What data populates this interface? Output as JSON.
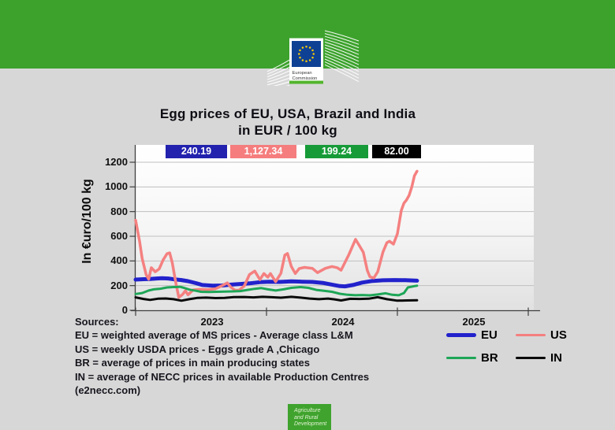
{
  "colors": {
    "header_green": "#3CA22C",
    "footer_green": "#3FA32E",
    "background_gray": "#D7D7D7",
    "logo_flag_blue": "#0E4194",
    "logo_bar_green": "#53B52C"
  },
  "logo": {
    "line1": "European",
    "line2": "Commission"
  },
  "title": {
    "line1": "Egg prices of EU, USA, Brazil and India",
    "line2": "in EUR / 100 kg"
  },
  "badges": [
    {
      "value": "240.19",
      "color": "#2222AE"
    },
    {
      "value": "1,127.34",
      "color": "#F57D7D"
    },
    {
      "value": "199.24",
      "color": "#169B38"
    },
    {
      "value": "82.00",
      "color": "#000000"
    }
  ],
  "sources": {
    "heading": "Sources:",
    "lines": [
      "EU =  weighted average of MS prices  -  Average class  L&M",
      "US =  weekly USDA prices  -  Eggs grade A ,Chicago",
      "BR =  average of prices in main producing states",
      "IN =  average of NECC prices in available  Production Centres",
      "(e2necc.com)"
    ]
  },
  "footer": {
    "lines": [
      "Agriculture",
      "and Rural",
      "Development"
    ]
  },
  "chart_data": {
    "type": "line",
    "title": "Egg prices of EU, USA, Brazil and India in EUR / 100 kg",
    "xlabel": "",
    "ylabel": "In €uro/100 kg",
    "ylim": [
      0,
      1200
    ],
    "y_ticks": [
      0,
      200,
      400,
      600,
      800,
      1000,
      1200
    ],
    "x_tick_labels": [
      "2023",
      "2024",
      "2025"
    ],
    "x_units": "decimal years, data from Jan 2023 to early 2025",
    "grid": true,
    "legend_position": "bottom-right",
    "series": [
      {
        "name": "EU",
        "color": "#2222CC",
        "width": 5,
        "last_label": "240.19",
        "last_value": 240.19,
        "x": [
          2023.0,
          2023.06,
          2023.11,
          2023.16,
          2023.2,
          2023.25,
          2023.3,
          2023.35,
          2023.4,
          2023.46,
          2023.51,
          2023.59,
          2023.66,
          2023.73,
          2023.8,
          2023.87,
          2023.95,
          2024.02,
          2024.1,
          2024.19,
          2024.27,
          2024.35,
          2024.43,
          2024.5,
          2024.56,
          2024.6,
          2024.66,
          2024.73,
          2024.81,
          2024.89,
          2024.98,
          2025.06,
          2025.15
        ],
        "values": [
          249,
          252,
          254,
          258,
          260,
          258,
          250,
          245,
          236,
          220,
          205,
          200,
          201,
          208,
          213,
          218,
          228,
          232,
          230,
          234,
          232,
          230,
          222,
          208,
          196,
          194,
          205,
          225,
          238,
          243,
          245,
          244,
          240.19
        ]
      },
      {
        "name": "US",
        "color": "#F58080",
        "width": 3.5,
        "last_label": "1,127.34",
        "last_value": 1127.34,
        "x": [
          2023.0,
          2023.03,
          2023.05,
          2023.08,
          2023.1,
          2023.12,
          2023.15,
          2023.18,
          2023.21,
          2023.24,
          2023.26,
          2023.28,
          2023.31,
          2023.33,
          2023.36,
          2023.38,
          2023.4,
          2023.44,
          2023.49,
          2023.55,
          2023.61,
          2023.67,
          2023.7,
          2023.73,
          2023.76,
          2023.79,
          2023.83,
          2023.87,
          2023.91,
          2023.95,
          2023.98,
          2024.01,
          2024.03,
          2024.07,
          2024.11,
          2024.14,
          2024.16,
          2024.19,
          2024.22,
          2024.25,
          2024.29,
          2024.35,
          2024.39,
          2024.45,
          2024.5,
          2024.54,
          2024.57,
          2024.63,
          2024.68,
          2024.71,
          2024.74,
          2024.77,
          2024.79,
          2024.82,
          2024.85,
          2024.89,
          2024.92,
          2024.94,
          2024.97,
          2025.0,
          2025.03,
          2025.05,
          2025.07,
          2025.09,
          2025.11,
          2025.13,
          2025.15
        ],
        "values": [
          730,
          560,
          420,
          290,
          252,
          345,
          312,
          335,
          408,
          458,
          465,
          385,
          205,
          105,
          130,
          158,
          126,
          165,
          170,
          168,
          174,
          205,
          222,
          185,
          163,
          163,
          197,
          290,
          318,
          248,
          298,
          268,
          298,
          232,
          300,
          447,
          460,
          355,
          298,
          338,
          348,
          340,
          305,
          340,
          355,
          345,
          325,
          453,
          575,
          523,
          470,
          325,
          272,
          262,
          313,
          472,
          548,
          560,
          536,
          620,
          810,
          868,
          894,
          932,
          1000,
          1090,
          1127.34
        ]
      },
      {
        "name": "BR",
        "color": "#1EA657",
        "width": 3,
        "last_label": "199.24",
        "last_value": 199.24,
        "x": [
          2023.0,
          2023.05,
          2023.1,
          2023.14,
          2023.19,
          2023.24,
          2023.29,
          2023.34,
          2023.37,
          2023.41,
          2023.46,
          2023.5,
          2023.56,
          2023.62,
          2023.68,
          2023.74,
          2023.8,
          2023.86,
          2023.91,
          2023.96,
          2024.01,
          2024.07,
          2024.13,
          2024.19,
          2024.26,
          2024.32,
          2024.38,
          2024.44,
          2024.5,
          2024.56,
          2024.62,
          2024.68,
          2024.73,
          2024.79,
          2024.85,
          2024.91,
          2024.96,
          2025.01,
          2025.05,
          2025.08,
          2025.13,
          2025.15
        ],
        "values": [
          132,
          140,
          160,
          170,
          175,
          185,
          188,
          190,
          182,
          168,
          158,
          150,
          148,
          150,
          152,
          153,
          156,
          166,
          174,
          180,
          170,
          160,
          170,
          182,
          188,
          182,
          165,
          158,
          150,
          134,
          126,
          122,
          124,
          121,
          128,
          138,
          126,
          122,
          140,
          185,
          196,
          199.24
        ]
      },
      {
        "name": "IN",
        "color": "#0A0A0A",
        "width": 3,
        "last_label": "82.00",
        "last_value": 82.0,
        "x": [
          2023.0,
          2023.06,
          2023.11,
          2023.17,
          2023.23,
          2023.29,
          2023.35,
          2023.41,
          2023.47,
          2023.54,
          2023.61,
          2023.68,
          2023.75,
          2023.83,
          2023.9,
          2023.97,
          2024.04,
          2024.11,
          2024.19,
          2024.26,
          2024.33,
          2024.4,
          2024.47,
          2024.52,
          2024.57,
          2024.64,
          2024.71,
          2024.78,
          2024.85,
          2024.92,
          2025.0,
          2025.07,
          2025.15
        ],
        "values": [
          105,
          92,
          84,
          94,
          96,
          90,
          78,
          90,
          100,
          103,
          99,
          101,
          107,
          108,
          105,
          109,
          106,
          102,
          109,
          103,
          95,
          90,
          95,
          89,
          80,
          93,
          92,
          94,
          106,
          90,
          78,
          80,
          82
        ]
      }
    ]
  }
}
